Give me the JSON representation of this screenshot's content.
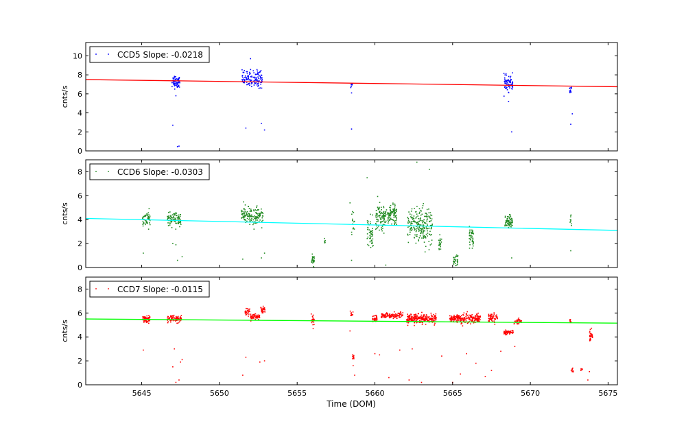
{
  "figure": {
    "xlabel": "Time (DOM)"
  },
  "chart_data": [
    {
      "type": "scatter",
      "name": "ccd5",
      "ylabel": "cnts/s",
      "xlim": [
        5641.4,
        5675.6
      ],
      "ylim": [
        0,
        11.4
      ],
      "yticks": [
        0,
        2,
        4,
        6,
        8,
        10
      ],
      "xticks": [
        5645,
        5650,
        5655,
        5660,
        5665,
        5670,
        5675
      ],
      "show_xticklabels": false,
      "legend": {
        "label": "CCD5 Slope: -0.0218",
        "placement": "top-left"
      },
      "point_color": "#0000ff",
      "fit": {
        "color": "#ff0000",
        "x": [
          5641.4,
          5675.6
        ],
        "y": [
          7.5,
          6.75
        ]
      },
      "clusters": [
        {
          "x": 5647.2,
          "width": 0.5,
          "mean": 7.3,
          "spread": 0.6,
          "n": 60
        },
        {
          "x": 5652.1,
          "width": 1.3,
          "mean": 7.6,
          "spread": 0.8,
          "n": 130
        },
        {
          "x": 5658.5,
          "width": 0.1,
          "mean": 7.0,
          "spread": 0.4,
          "n": 8
        },
        {
          "x": 5668.6,
          "width": 0.6,
          "mean": 7.1,
          "spread": 0.7,
          "n": 70
        },
        {
          "x": 5672.6,
          "width": 0.15,
          "mean": 6.4,
          "spread": 0.4,
          "n": 12
        }
      ],
      "points": [
        [
          5647.0,
          2.7
        ],
        [
          5647.3,
          0.45
        ],
        [
          5647.4,
          0.5
        ],
        [
          5647.2,
          5.8
        ],
        [
          5651.7,
          2.4
        ],
        [
          5652.7,
          2.9
        ],
        [
          5652.9,
          2.2
        ],
        [
          5652.0,
          9.7
        ],
        [
          5658.5,
          2.3
        ],
        [
          5658.5,
          6.1
        ],
        [
          5668.8,
          2.0
        ],
        [
          5668.6,
          5.2
        ],
        [
          5672.6,
          2.8
        ],
        [
          5672.7,
          3.9
        ]
      ]
    },
    {
      "type": "scatter",
      "name": "ccd6",
      "ylabel": "cnts/s",
      "xlim": [
        5641.4,
        5675.6
      ],
      "ylim": [
        0,
        9.0
      ],
      "yticks": [
        0,
        2,
        4,
        6,
        8
      ],
      "xticks": [
        5645,
        5650,
        5655,
        5660,
        5665,
        5670,
        5675
      ],
      "show_xticklabels": false,
      "legend": {
        "label": "CCD6 Slope: -0.0303",
        "placement": "top-left"
      },
      "point_color": "#228b22",
      "fit": {
        "color": "#00ffff",
        "x": [
          5641.4,
          5675.6
        ],
        "y": [
          4.1,
          3.1
        ]
      },
      "clusters": [
        {
          "x": 5645.3,
          "width": 0.5,
          "mean": 4.0,
          "spread": 0.6,
          "n": 45
        },
        {
          "x": 5647.1,
          "width": 0.9,
          "mean": 4.0,
          "spread": 0.5,
          "n": 90
        },
        {
          "x": 5652.1,
          "width": 1.4,
          "mean": 4.3,
          "spread": 0.7,
          "n": 140
        },
        {
          "x": 5656.0,
          "width": 0.2,
          "mean": 0.6,
          "spread": 0.4,
          "n": 25
        },
        {
          "x": 5656.8,
          "width": 0.1,
          "mean": 2.2,
          "spread": 0.3,
          "n": 6
        },
        {
          "x": 5658.6,
          "width": 0.2,
          "mean": 3.8,
          "spread": 1.0,
          "n": 15
        },
        {
          "x": 5659.7,
          "width": 0.4,
          "mean": 2.8,
          "spread": 1.2,
          "n": 50
        },
        {
          "x": 5660.4,
          "width": 0.7,
          "mean": 4.2,
          "spread": 1.0,
          "n": 100
        },
        {
          "x": 5661.1,
          "width": 0.6,
          "mean": 4.4,
          "spread": 0.7,
          "n": 90
        },
        {
          "x": 5662.9,
          "width": 1.6,
          "mean": 3.5,
          "spread": 1.4,
          "n": 220
        },
        {
          "x": 5664.2,
          "width": 0.2,
          "mean": 2.0,
          "spread": 0.6,
          "n": 20
        },
        {
          "x": 5665.2,
          "width": 0.3,
          "mean": 0.6,
          "spread": 0.5,
          "n": 30
        },
        {
          "x": 5666.2,
          "width": 0.3,
          "mean": 2.5,
          "spread": 0.8,
          "n": 40
        },
        {
          "x": 5668.6,
          "width": 0.5,
          "mean": 3.8,
          "spread": 0.5,
          "n": 70
        },
        {
          "x": 5672.6,
          "width": 0.1,
          "mean": 4.0,
          "spread": 0.4,
          "n": 10
        }
      ],
      "points": [
        [
          5645.1,
          1.2
        ],
        [
          5647.0,
          2.0
        ],
        [
          5647.2,
          1.9
        ],
        [
          5647.3,
          0.6
        ],
        [
          5647.6,
          0.9
        ],
        [
          5651.5,
          0.7
        ],
        [
          5652.7,
          0.8
        ],
        [
          5652.9,
          1.2
        ],
        [
          5658.4,
          5.4
        ],
        [
          5658.5,
          0.6
        ],
        [
          5659.5,
          7.5
        ],
        [
          5662.7,
          8.8
        ],
        [
          5663.5,
          8.2
        ],
        [
          5660.7,
          0.2
        ],
        [
          5668.8,
          0.8
        ],
        [
          5672.6,
          1.4
        ]
      ]
    },
    {
      "type": "scatter",
      "name": "ccd7",
      "ylabel": "cnts/s",
      "xlim": [
        5641.4,
        5675.6
      ],
      "ylim": [
        0,
        9.0
      ],
      "yticks": [
        0,
        2,
        4,
        6,
        8
      ],
      "xticks": [
        5645,
        5650,
        5655,
        5660,
        5665,
        5670,
        5675
      ],
      "show_xticklabels": true,
      "legend": {
        "label": "CCD7 Slope: -0.0115",
        "placement": "top-left"
      },
      "point_color": "#ff0000",
      "fit": {
        "color": "#00ff00",
        "x": [
          5641.4,
          5675.6
        ],
        "y": [
          5.5,
          5.15
        ]
      },
      "clusters": [
        {
          "x": 5645.3,
          "width": 0.5,
          "mean": 5.5,
          "spread": 0.25,
          "n": 50
        },
        {
          "x": 5647.1,
          "width": 0.9,
          "mean": 5.5,
          "spread": 0.25,
          "n": 90
        },
        {
          "x": 5651.8,
          "width": 0.3,
          "mean": 6.1,
          "spread": 0.3,
          "n": 30
        },
        {
          "x": 5652.3,
          "width": 0.6,
          "mean": 5.7,
          "spread": 0.2,
          "n": 60
        },
        {
          "x": 5652.8,
          "width": 0.3,
          "mean": 6.3,
          "spread": 0.25,
          "n": 30
        },
        {
          "x": 5656.0,
          "width": 0.2,
          "mean": 5.5,
          "spread": 0.5,
          "n": 20
        },
        {
          "x": 5658.5,
          "width": 0.2,
          "mean": 5.9,
          "spread": 0.2,
          "n": 10
        },
        {
          "x": 5658.6,
          "width": 0.1,
          "mean": 2.3,
          "spread": 0.2,
          "n": 10
        },
        {
          "x": 5660.0,
          "width": 0.3,
          "mean": 5.5,
          "spread": 0.3,
          "n": 35
        },
        {
          "x": 5661.1,
          "width": 1.4,
          "mean": 5.8,
          "spread": 0.2,
          "n": 120
        },
        {
          "x": 5663.0,
          "width": 1.9,
          "mean": 5.5,
          "spread": 0.4,
          "n": 260
        },
        {
          "x": 5665.8,
          "width": 2.0,
          "mean": 5.5,
          "spread": 0.35,
          "n": 220
        },
        {
          "x": 5667.6,
          "width": 0.6,
          "mean": 5.6,
          "spread": 0.3,
          "n": 60
        },
        {
          "x": 5668.6,
          "width": 0.6,
          "mean": 4.4,
          "spread": 0.15,
          "n": 60
        },
        {
          "x": 5669.2,
          "width": 0.5,
          "mean": 5.3,
          "spread": 0.2,
          "n": 40
        },
        {
          "x": 5672.6,
          "width": 0.1,
          "mean": 5.4,
          "spread": 0.2,
          "n": 10
        },
        {
          "x": 5672.7,
          "width": 0.15,
          "mean": 1.3,
          "spread": 0.15,
          "n": 10
        },
        {
          "x": 5673.3,
          "width": 0.1,
          "mean": 1.3,
          "spread": 0.1,
          "n": 6
        },
        {
          "x": 5673.9,
          "width": 0.2,
          "mean": 4.1,
          "spread": 0.4,
          "n": 30
        }
      ],
      "points": [
        [
          5645.1,
          2.9
        ],
        [
          5647.0,
          1.5
        ],
        [
          5647.1,
          3.0
        ],
        [
          5647.2,
          0.2
        ],
        [
          5647.3,
          7.4
        ],
        [
          5647.4,
          0.4
        ],
        [
          5647.5,
          1.9
        ],
        [
          5647.6,
          2.1
        ],
        [
          5651.5,
          0.8
        ],
        [
          5651.7,
          2.3
        ],
        [
          5652.6,
          1.9
        ],
        [
          5652.9,
          2.0
        ],
        [
          5658.4,
          4.5
        ],
        [
          5658.6,
          1.6
        ],
        [
          5658.7,
          0.8
        ],
        [
          5660.0,
          2.6
        ],
        [
          5660.3,
          2.5
        ],
        [
          5660.9,
          0.6
        ],
        [
          5661.6,
          2.9
        ],
        [
          5662.2,
          0.4
        ],
        [
          5662.4,
          3.0
        ],
        [
          5663.0,
          0.2
        ],
        [
          5664.3,
          2.4
        ],
        [
          5665.0,
          0.2
        ],
        [
          5665.5,
          0.9
        ],
        [
          5665.9,
          2.6
        ],
        [
          5666.5,
          1.8
        ],
        [
          5667.1,
          0.7
        ],
        [
          5667.5,
          1.2
        ],
        [
          5668.1,
          2.8
        ],
        [
          5669.0,
          3.2
        ],
        [
          5673.7,
          0.4
        ],
        [
          5673.8,
          1.1
        ]
      ]
    }
  ]
}
